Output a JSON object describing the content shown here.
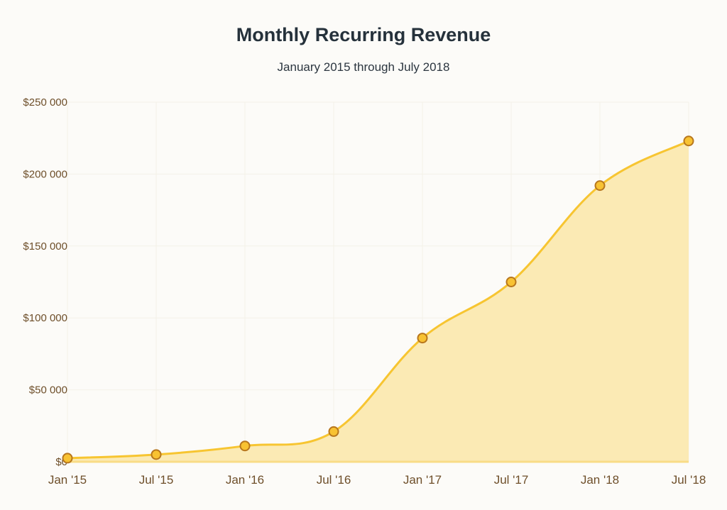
{
  "chart_data": {
    "type": "area",
    "title": "Monthly Recurring Revenue",
    "subtitle": "January 2015 through July 2018",
    "xlabel": "",
    "ylabel": "",
    "categories": [
      "Jan '15",
      "Jul '15",
      "Jan '16",
      "Jul '16",
      "Jan '17",
      "Jul '17",
      "Jan '18",
      "Jul '18"
    ],
    "series": [
      {
        "name": "Monthly Recurring Revenue",
        "values": [
          2500,
          5000,
          11000,
          21000,
          86000,
          125000,
          192000,
          223000
        ]
      }
    ],
    "ylim": [
      0,
      250000
    ],
    "yticks": [
      0,
      50000,
      100000,
      150000,
      200000,
      250000
    ],
    "ytick_labels": [
      "$0",
      "$50 000",
      "$100 000",
      "$150 000",
      "$200 000",
      "$250 000"
    ],
    "grid": true,
    "legend": "none",
    "colors": {
      "line": "#f7c531",
      "fill": "#fbeab4",
      "marker_fill": "#f8c232",
      "marker_stroke": "#b7761d",
      "grid": "#f4f1e8",
      "axis_text": "#6e4f2a",
      "title": "#25313b"
    }
  }
}
